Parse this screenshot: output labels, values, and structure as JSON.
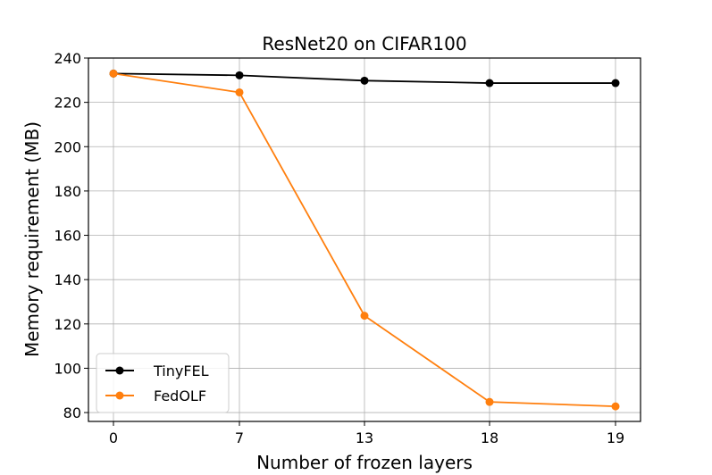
{
  "chart_data": {
    "type": "line",
    "title": "ResNet20 on CIFAR100",
    "xlabel": "Number of frozen layers",
    "ylabel": "Memory requirement (MB)",
    "categories": [
      "0",
      "7",
      "13",
      "18",
      "19"
    ],
    "yticks": [
      80,
      100,
      120,
      140,
      160,
      180,
      200,
      220,
      240
    ],
    "ylim": [
      76,
      240
    ],
    "grid": true,
    "legend_position": "lower-left",
    "series": [
      {
        "name": "TinyFEL",
        "color": "#000000",
        "values": [
          233,
          232.2,
          229.8,
          228.7,
          228.7
        ]
      },
      {
        "name": "FedOLF",
        "color": "#ff7f0e",
        "values": [
          233,
          224.5,
          123.7,
          84.8,
          82.8
        ]
      }
    ]
  }
}
